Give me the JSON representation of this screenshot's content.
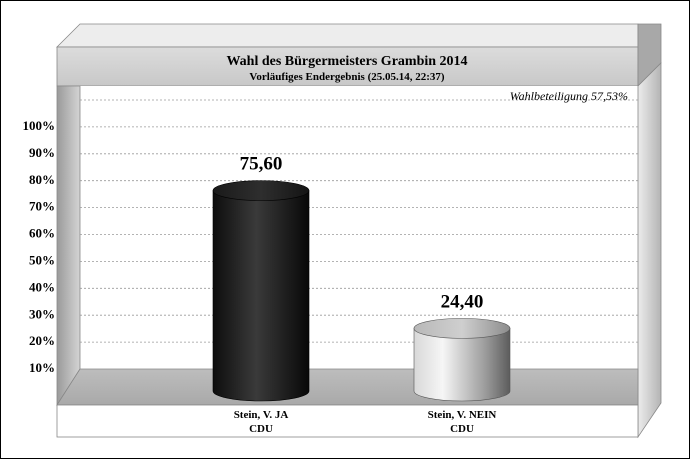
{
  "chart_data": {
    "type": "bar",
    "title": "Wahl des Bürgermeisters Grambin 2014",
    "subtitle": "Vorläufiges Endergebnis (25.05.14, 22:37)",
    "annotation": "Wahlbeteiligung 57,53%",
    "categories": [
      "Stein, V. JA",
      "Stein, V. NEIN"
    ],
    "category_sublabels": [
      "CDU",
      "CDU"
    ],
    "values": [
      75.6,
      24.4
    ],
    "value_labels": [
      "75,60",
      "24,40"
    ],
    "bar_styles": [
      "dark",
      "light"
    ],
    "y_ticks": [
      "10%",
      "20%",
      "30%",
      "40%",
      "50%",
      "60%",
      "70%",
      "80%",
      "90%",
      "100%"
    ],
    "ylim": [
      0,
      100
    ],
    "xlabel": "",
    "ylabel": "",
    "grid": true,
    "style": "3d-cylinder"
  }
}
